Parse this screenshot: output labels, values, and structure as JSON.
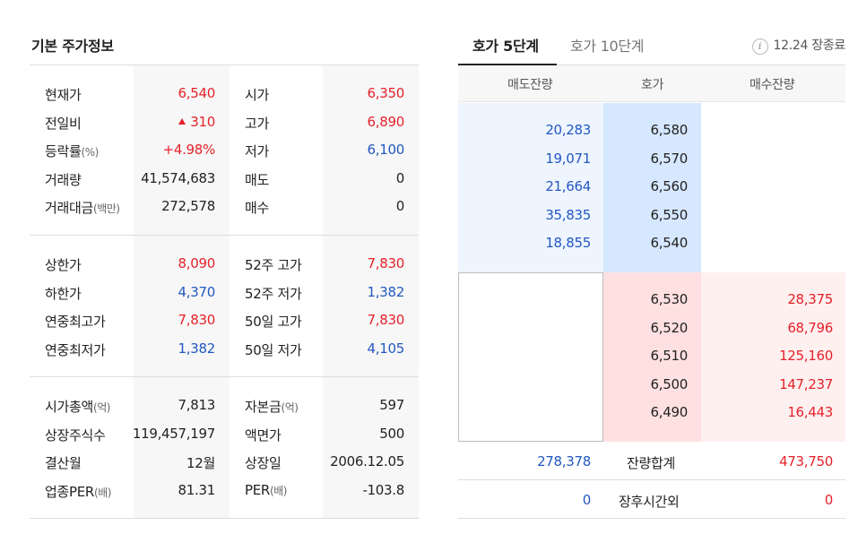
{
  "basic": {
    "title": "기본 주가정보",
    "groups": [
      {
        "rows": [
          {
            "l1": "현재가",
            "l1_small": "",
            "v1": "6,540",
            "v1_color": "red",
            "v1_arrow": false,
            "l2": "시가",
            "l2_small": "",
            "v2": "6,350",
            "v2_color": "red"
          },
          {
            "l1": "전일비",
            "l1_small": "",
            "v1": "310",
            "v1_color": "red",
            "v1_arrow": true,
            "l2": "고가",
            "l2_small": "",
            "v2": "6,890",
            "v2_color": "red"
          },
          {
            "l1": "등락률",
            "l1_small": "(%)",
            "v1": "+4.98%",
            "v1_color": "red",
            "v1_arrow": false,
            "l2": "저가",
            "l2_small": "",
            "v2": "6,100",
            "v2_color": "blue"
          },
          {
            "l1": "거래량",
            "l1_small": "",
            "v1": "41,574,683",
            "v1_color": "dark",
            "v1_arrow": false,
            "l2": "매도",
            "l2_small": "",
            "v2": "0",
            "v2_color": "dark"
          },
          {
            "l1": "거래대금",
            "l1_small": "(백만)",
            "v1": "272,578",
            "v1_color": "dark",
            "v1_arrow": false,
            "l2": "매수",
            "l2_small": "",
            "v2": "0",
            "v2_color": "dark"
          }
        ]
      },
      {
        "rows": [
          {
            "l1": "상한가",
            "l1_small": "",
            "v1": "8,090",
            "v1_color": "red",
            "v1_arrow": false,
            "l2": "52주 고가",
            "l2_small": "",
            "v2": "7,830",
            "v2_color": "red"
          },
          {
            "l1": "하한가",
            "l1_small": "",
            "v1": "4,370",
            "v1_color": "blue",
            "v1_arrow": false,
            "l2": "52주 저가",
            "l2_small": "",
            "v2": "1,382",
            "v2_color": "blue"
          },
          {
            "l1": "연중최고가",
            "l1_small": "",
            "v1": "7,830",
            "v1_color": "red",
            "v1_arrow": false,
            "l2": "50일 고가",
            "l2_small": "",
            "v2": "7,830",
            "v2_color": "red"
          },
          {
            "l1": "연중최저가",
            "l1_small": "",
            "v1": "1,382",
            "v1_color": "blue",
            "v1_arrow": false,
            "l2": "50일 저가",
            "l2_small": "",
            "v2": "4,105",
            "v2_color": "blue"
          }
        ]
      },
      {
        "rows": [
          {
            "l1": "시가총액",
            "l1_small": "(억)",
            "v1": "7,813",
            "v1_color": "dark",
            "v1_arrow": false,
            "l2": "자본금",
            "l2_small": "(억)",
            "v2": "597",
            "v2_color": "dark"
          },
          {
            "l1": "상장주식수",
            "l1_small": "",
            "v1": "119,457,197",
            "v1_color": "dark",
            "v1_arrow": false,
            "l2": "액면가",
            "l2_small": "",
            "v2": "500",
            "v2_color": "dark"
          },
          {
            "l1": "결산월",
            "l1_small": "",
            "v1": "12월",
            "v1_color": "dark",
            "v1_arrow": false,
            "l2": "상장일",
            "l2_small": "",
            "v2": "2006.12.05",
            "v2_color": "dark"
          },
          {
            "l1": "업종PER",
            "l1_small": "(배)",
            "v1": "81.31",
            "v1_color": "dark",
            "v1_arrow": false,
            "l2": "PER",
            "l2_small": "(배)",
            "v2": "-103.8",
            "v2_color": "dark"
          }
        ]
      }
    ]
  },
  "orderbook": {
    "tabs": [
      {
        "label": "호가 5단계",
        "active": true
      },
      {
        "label": "호가 10단계",
        "active": false
      }
    ],
    "info_icon_glyph": "i",
    "info_text": "12.24 장종료",
    "headers": {
      "sell_volume": "매도잔량",
      "price": "호가",
      "buy_volume": "매수잔량"
    },
    "asks": [
      {
        "volume": "20,283",
        "price": "6,580"
      },
      {
        "volume": "19,071",
        "price": "6,570"
      },
      {
        "volume": "21,664",
        "price": "6,560"
      },
      {
        "volume": "35,835",
        "price": "6,550"
      },
      {
        "volume": "18,855",
        "price": "6,540"
      }
    ],
    "bids": [
      {
        "price": "6,530",
        "volume": "28,375"
      },
      {
        "price": "6,520",
        "volume": "68,796"
      },
      {
        "price": "6,510",
        "volume": "125,160"
      },
      {
        "price": "6,500",
        "volume": "147,237"
      },
      {
        "price": "6,490",
        "volume": "16,443"
      }
    ],
    "totals": {
      "sell": "278,378",
      "label": "잔량합계",
      "buy": "473,750"
    },
    "after_hours": {
      "sell": "0",
      "label": "장후시간외",
      "buy": "0"
    }
  },
  "colors": {
    "red": "#e5222a",
    "blue": "#2358c0",
    "dark": "#222222",
    "ask_bg": "#d6e8ff",
    "bid_bg": "#ffe0e0"
  }
}
